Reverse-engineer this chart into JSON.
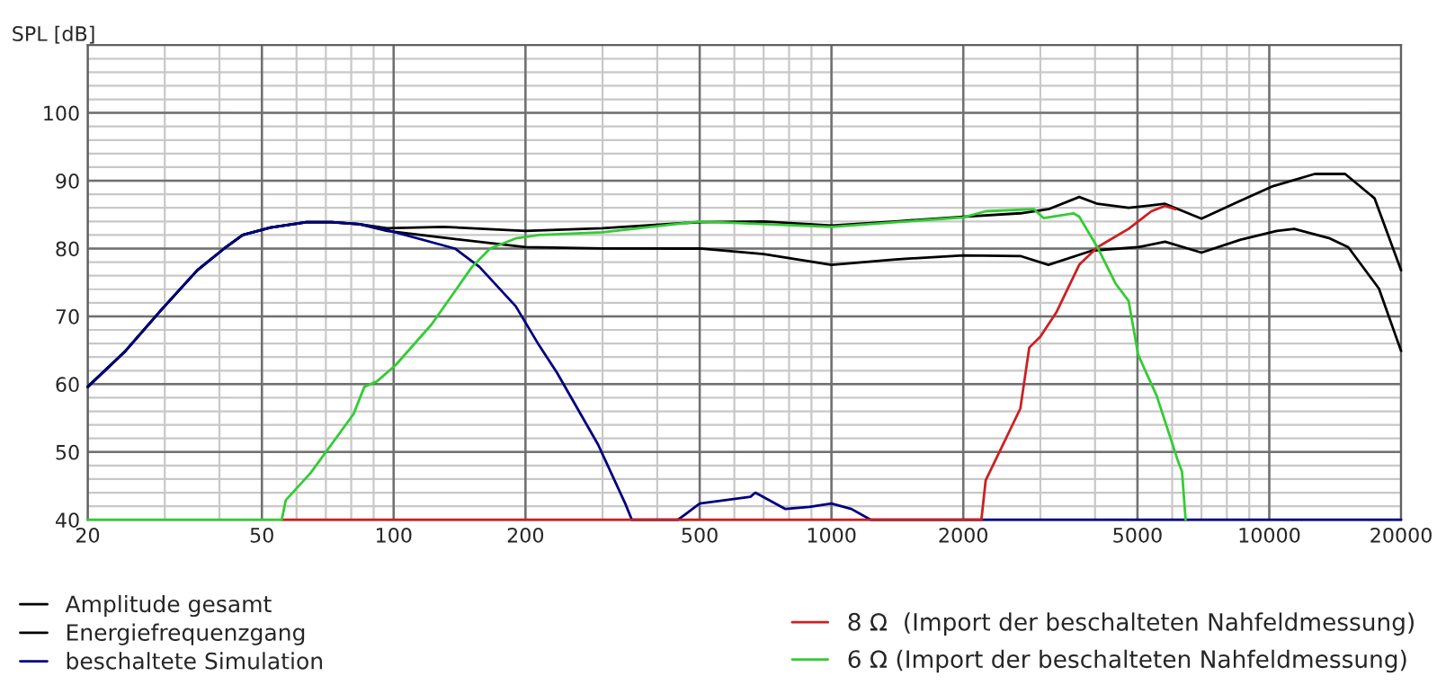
{
  "chart_data": {
    "type": "line",
    "ylabel": "SPL [dB]",
    "log": "x",
    "grid": true,
    "legend": "bottom",
    "marker": "none",
    "line_style": "solid",
    "xlim": [
      20,
      20000
    ],
    "xticks": [
      20,
      50,
      100,
      200,
      500,
      1000,
      2000,
      5000,
      10000,
      20000
    ],
    "ylim": [
      40,
      110
    ],
    "yticks": [
      40,
      50,
      60,
      70,
      80,
      90,
      100
    ],
    "series": [
      {
        "name": "Amplitude gesamt",
        "color": "#000000",
        "x": [
          20,
          24.4,
          29.5,
          35.6,
          41,
          45.2,
          52.3,
          63.2,
          72.2,
          83.5,
          96.6,
          130,
          200,
          300,
          500,
          700,
          1000,
          1400,
          2000,
          2700,
          3130,
          3680,
          4050,
          4770,
          5780,
          7000,
          8420,
          10200,
          12700,
          14900,
          17400,
          20000
        ],
        "values": [
          59.6,
          64.9,
          71,
          76.8,
          80,
          82,
          83.1,
          83.9,
          83.9,
          83.6,
          83,
          83.2,
          82.6,
          83,
          83.9,
          84,
          83.4,
          84,
          84.7,
          85.2,
          85.8,
          87.6,
          86.6,
          86,
          86.6,
          84.4,
          86.8,
          89.2,
          91,
          91,
          87.4,
          76.8
        ]
      },
      {
        "name": "Energiefrequenzgang",
        "color": "#000000",
        "x": [
          20,
          24.4,
          29.5,
          35.6,
          41,
          45.2,
          52.3,
          63.2,
          72.2,
          83.5,
          96.6,
          130,
          200,
          300,
          500,
          700,
          1000,
          1400,
          2000,
          2700,
          3130,
          3940,
          5020,
          5780,
          7000,
          8600,
          10400,
          11400,
          13750,
          15150,
          17800,
          20000
        ],
        "values": [
          59.6,
          64.9,
          71,
          76.8,
          80,
          82,
          83.1,
          83.9,
          83.9,
          83.6,
          82.6,
          81.6,
          80.2,
          80,
          80,
          79.2,
          77.6,
          78.4,
          79,
          78.9,
          77.6,
          79.7,
          80.2,
          81,
          79.4,
          81.3,
          82.6,
          82.9,
          81.5,
          80.2,
          74.1,
          64.9
        ]
      },
      {
        "name": "beschaltete Simulation",
        "color": "#000080",
        "x": [
          20,
          24.4,
          29.5,
          35.6,
          41,
          45.2,
          52.3,
          63.2,
          72.2,
          83.5,
          94.5,
          138,
          157,
          190,
          215,
          236,
          293,
          338,
          350,
          446,
          500,
          653,
          670,
          785,
          890,
          1000,
          1110,
          1230,
          20000
        ],
        "values": [
          59.6,
          64.9,
          71,
          76.8,
          80,
          82,
          83.1,
          83.9,
          83.9,
          83.6,
          82.9,
          80,
          77.3,
          71.5,
          65.7,
          61.7,
          51.1,
          42.4,
          40,
          40,
          42.4,
          43.4,
          44,
          41.6,
          41.9,
          42.4,
          41.6,
          40,
          40
        ]
      },
      {
        "name": "8 Ω  (Import der beschalteten Nahfeldmessung)",
        "color": "#cc2020",
        "x": [
          55.5,
          2200,
          2250,
          2700,
          2830,
          3000,
          3270,
          3680,
          4050,
          4770,
          5380,
          5780,
          6100
        ],
        "values": [
          40,
          40,
          45.8,
          56.4,
          65.4,
          67,
          70.7,
          77.6,
          80.2,
          82.9,
          85.5,
          86.3,
          85.8
        ]
      },
      {
        "name": "6 Ω (Import der beschalteten Nahfeldmessung)",
        "color": "#33cc33",
        "x": [
          20,
          55.5,
          56.7,
          64.6,
          81,
          85.7,
          91.5,
          101,
          122,
          151,
          166,
          190,
          215,
          300,
          500,
          1000,
          2000,
          2250,
          2900,
          3050,
          3570,
          3680,
          4050,
          4450,
          4770,
          5020,
          5530,
          6200,
          6320,
          6440
        ],
        "values": [
          40,
          40,
          42.9,
          46.9,
          55.6,
          59.6,
          60.4,
          62.8,
          68.8,
          77.3,
          80,
          81.5,
          82,
          82.4,
          84,
          83.2,
          84.6,
          85.5,
          85.8,
          84.5,
          85.2,
          84.7,
          80.2,
          74.9,
          72.3,
          64.3,
          58.3,
          48.5,
          47.1,
          40
        ]
      }
    ]
  }
}
